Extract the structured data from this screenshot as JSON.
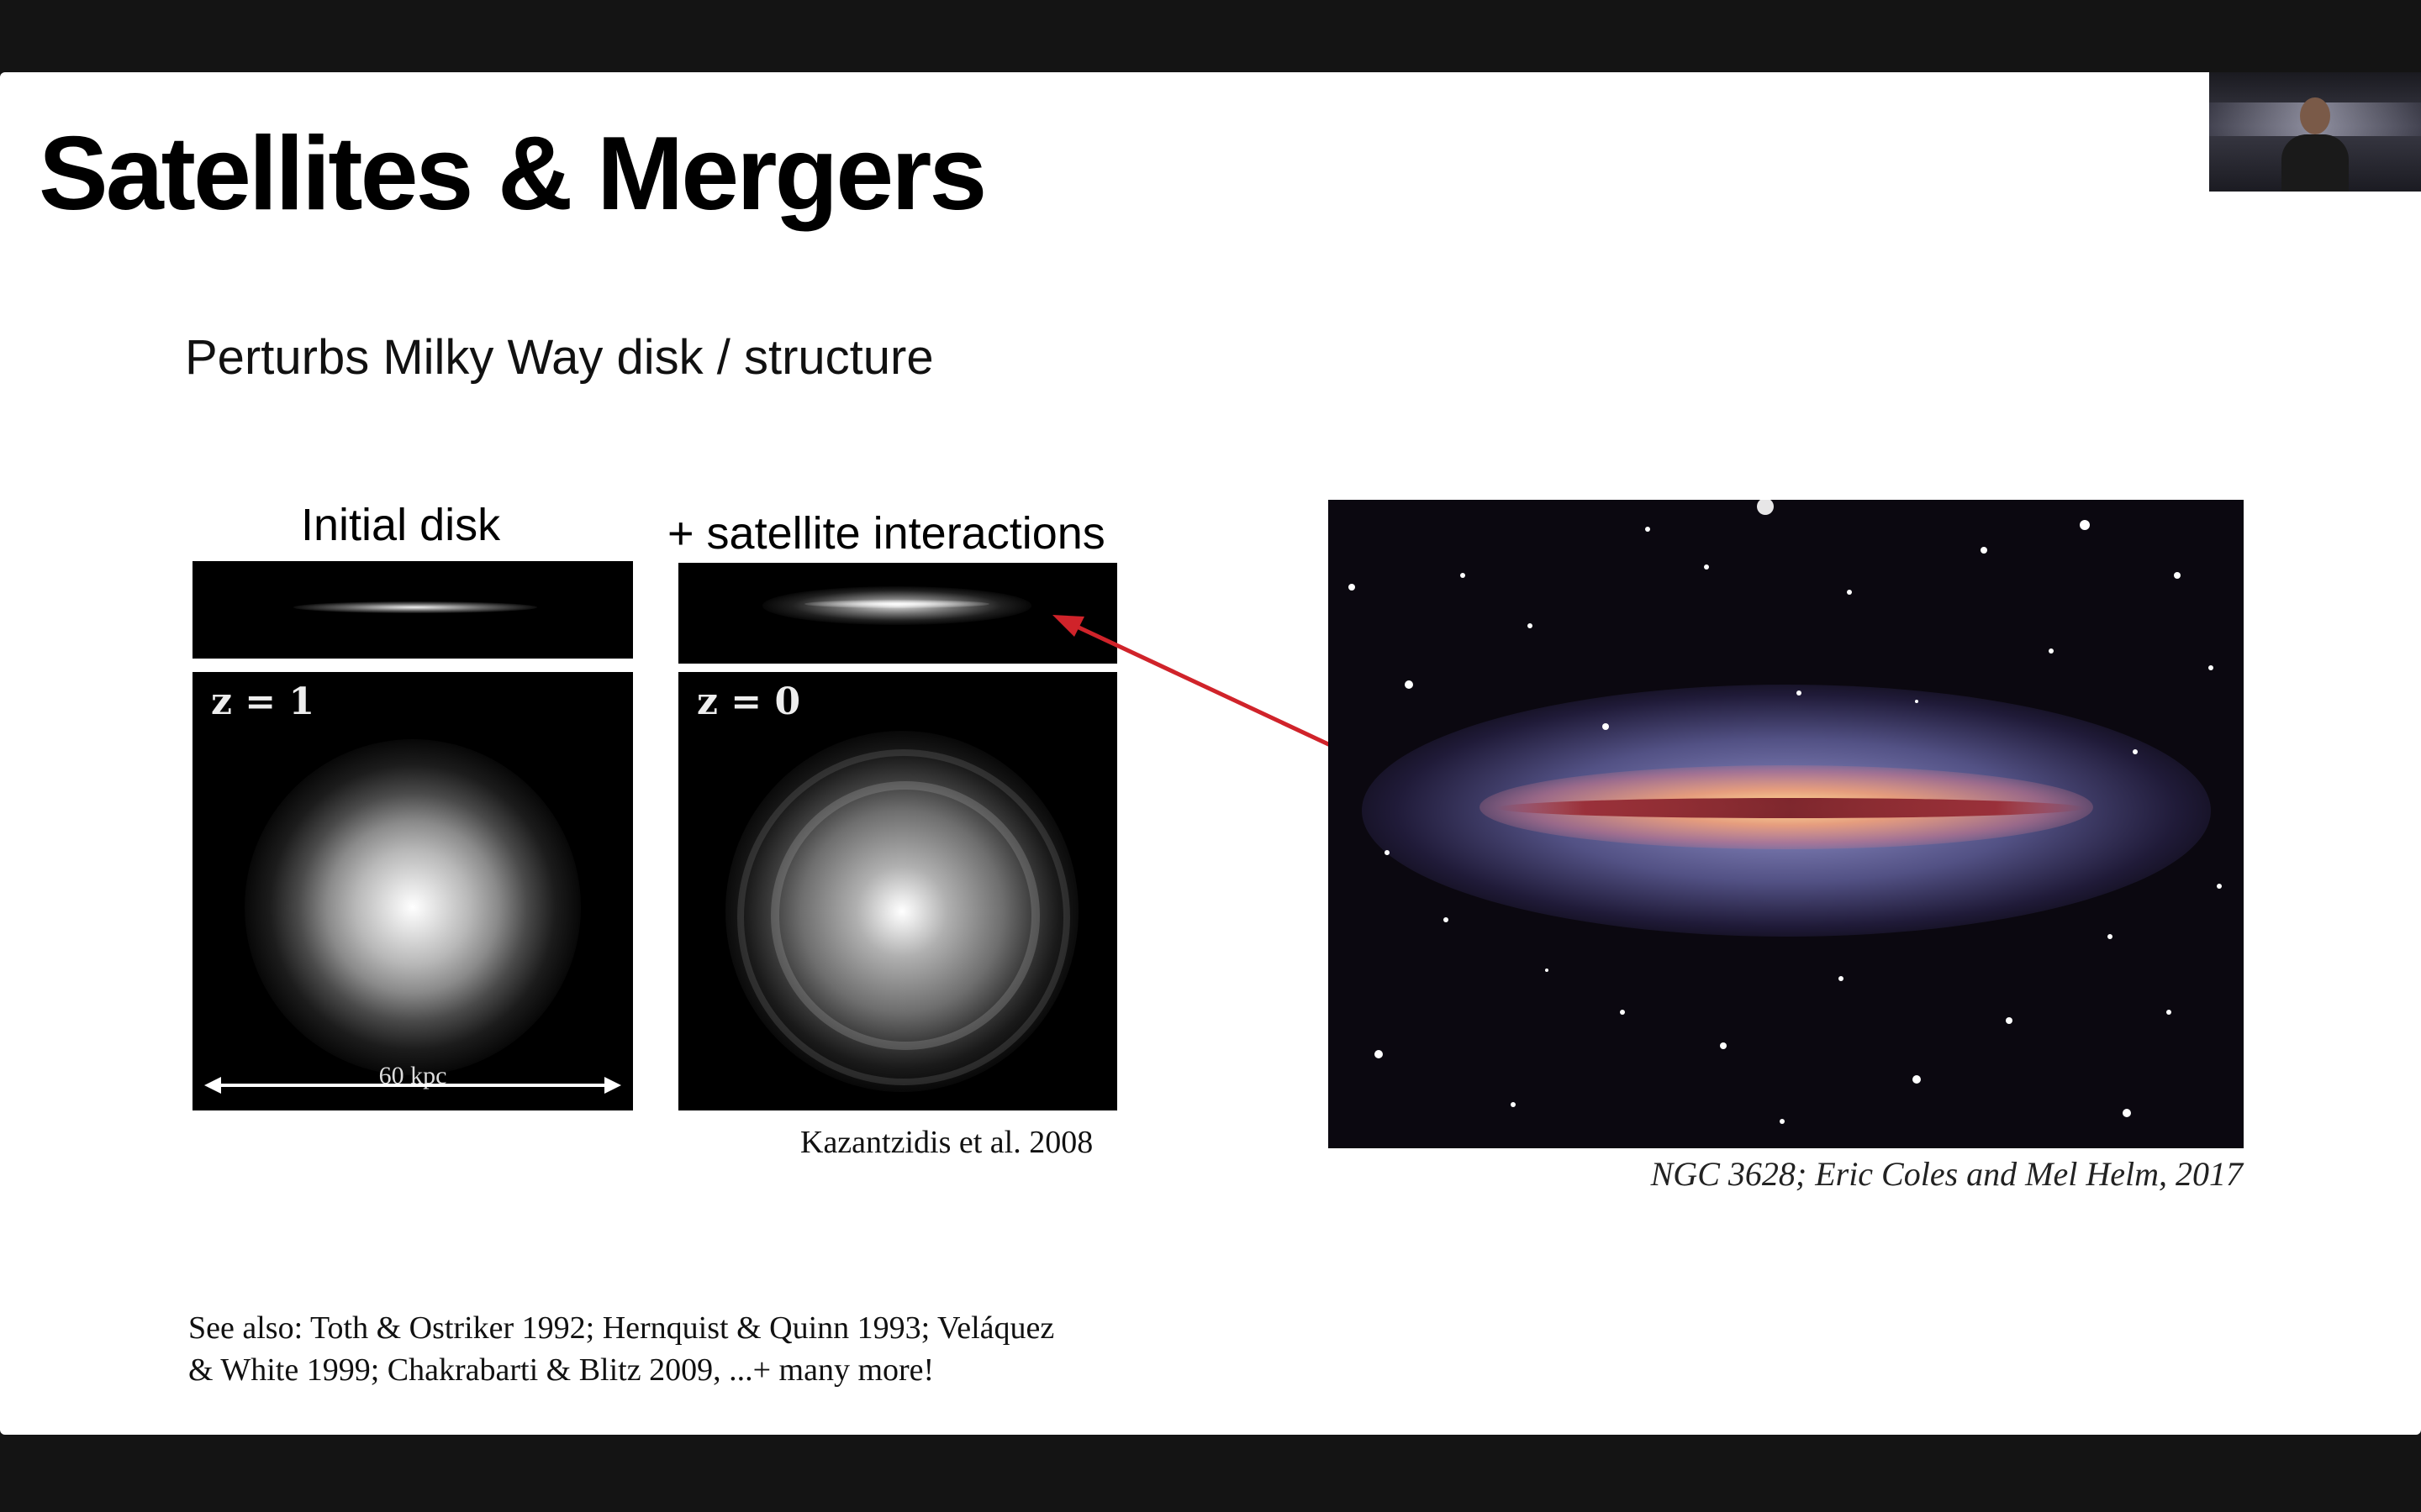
{
  "slide": {
    "title": "Satellites & Mergers",
    "subtitle": "Perturbs Milky Way disk / structure"
  },
  "simulation": {
    "left_panel": {
      "label": "Initial disk",
      "redshift": "z = 1",
      "scale": "60 kpc"
    },
    "right_panel": {
      "label": "+ satellite interactions",
      "redshift": "z = 0"
    },
    "citation": "Kazantzidis et al. 2008"
  },
  "photo": {
    "caption": "NGC 3628; Eric Coles and Mel Helm, 2017"
  },
  "references": {
    "line1": "See also: Toth & Ostriker 1992;  Hernquist & Quinn 1993;  Veláquez",
    "line2": "& White 1999;  Chakrabarti & Blitz 2009, ...+ many more!"
  },
  "colors": {
    "arrow": "#d0232a",
    "background": "#141414",
    "slide": "#ffffff"
  }
}
